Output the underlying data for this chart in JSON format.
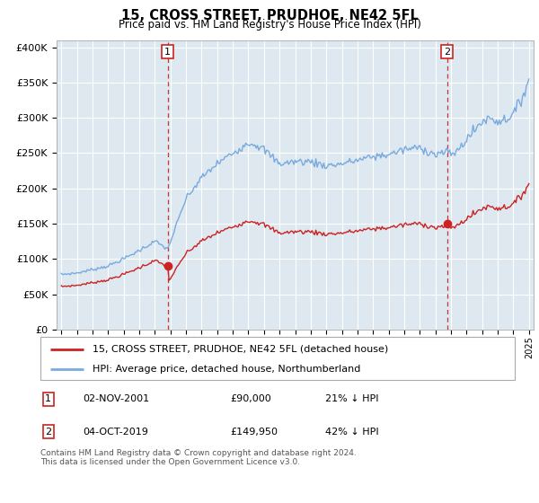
{
  "title": "15, CROSS STREET, PRUDHOE, NE42 5FL",
  "subtitle": "Price paid vs. HM Land Registry's House Price Index (HPI)",
  "legend_line1": "15, CROSS STREET, PRUDHOE, NE42 5FL (detached house)",
  "legend_line2": "HPI: Average price, detached house, Northumberland",
  "footnote1": "Contains HM Land Registry data © Crown copyright and database right 2024.",
  "footnote2": "This data is licensed under the Open Government Licence v3.0.",
  "annotation1_date": "02-NOV-2001",
  "annotation1_price": "£90,000",
  "annotation1_hpi": "21% ↓ HPI",
  "annotation2_date": "04-OCT-2019",
  "annotation2_price": "£149,950",
  "annotation2_hpi": "42% ↓ HPI",
  "vline1_x": 2001.83,
  "vline2_x": 2019.75,
  "sale1_x": 2001.83,
  "sale1_y": 90000,
  "sale2_x": 2019.75,
  "sale2_y": 149950,
  "ylabel_vals": [
    0,
    50000,
    100000,
    150000,
    200000,
    250000,
    300000,
    350000,
    400000
  ],
  "ylabel_strs": [
    "£0",
    "£50K",
    "£100K",
    "£150K",
    "£200K",
    "£250K",
    "£300K",
    "£350K",
    "£400K"
  ],
  "ylim": [
    0,
    410000
  ],
  "xlim_start": 1994.7,
  "xlim_end": 2025.3,
  "hpi_color": "#7aaadd",
  "price_color": "#cc2222",
  "bg_color": "#dde8f0",
  "grid_color": "#ffffff",
  "annotation_box_color": "#cc2222",
  "vline_color": "#cc3333"
}
